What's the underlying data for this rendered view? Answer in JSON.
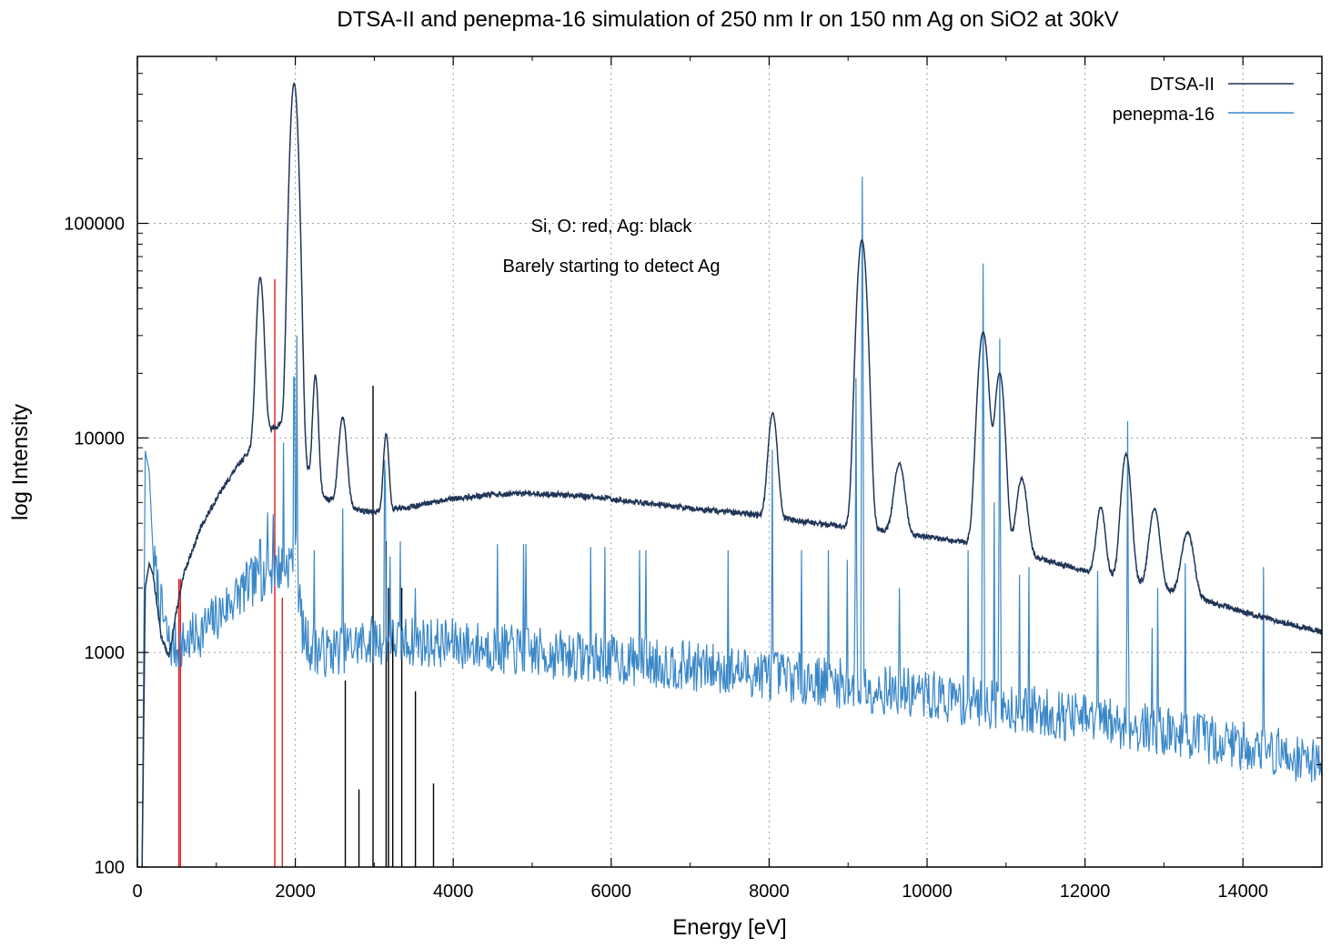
{
  "chart_data": {
    "type": "line",
    "title": "DTSA-II and penepma-16 simulation of 250 nm Ir on 150 nm Ag on SiO2 at 30kV",
    "xlabel": "Energy [eV]",
    "ylabel": "log Intensity",
    "xlim": [
      0,
      15000
    ],
    "ylim": [
      100,
      600000
    ],
    "yscale": "log",
    "x_ticks": [
      0,
      2000,
      4000,
      6000,
      8000,
      10000,
      12000,
      14000
    ],
    "y_ticks": [
      100,
      1000,
      10000,
      100000
    ],
    "grid": true,
    "legend_position": "top-right",
    "annotations": [
      "Si, O: red, Ag: black",
      "Barely starting to detect Ag"
    ],
    "series": [
      {
        "name": "DTSA-II",
        "color": "#1f3557",
        "continuum": [
          [
            60,
            100
          ],
          [
            100,
            2000
          ],
          [
            150,
            2600
          ],
          [
            200,
            2300
          ],
          [
            300,
            1200
          ],
          [
            400,
            950
          ],
          [
            500,
            1600
          ],
          [
            600,
            2400
          ],
          [
            800,
            3800
          ],
          [
            1000,
            5200
          ],
          [
            1200,
            6800
          ],
          [
            1400,
            8600
          ],
          [
            1500,
            9600
          ],
          [
            1600,
            10500
          ],
          [
            1800,
            11500
          ],
          [
            2000,
            9000
          ],
          [
            2200,
            6500
          ],
          [
            2400,
            5200
          ],
          [
            2600,
            4900
          ],
          [
            2800,
            4600
          ],
          [
            3000,
            4500
          ],
          [
            3500,
            4800
          ],
          [
            4000,
            5200
          ],
          [
            4500,
            5450
          ],
          [
            5000,
            5500
          ],
          [
            5500,
            5400
          ],
          [
            6000,
            5200
          ],
          [
            6500,
            4950
          ],
          [
            7000,
            4700
          ],
          [
            7500,
            4500
          ],
          [
            8000,
            4300
          ],
          [
            8500,
            4050
          ],
          [
            9000,
            3850
          ],
          [
            9500,
            3650
          ],
          [
            10000,
            3450
          ],
          [
            10500,
            3250
          ],
          [
            11000,
            3000
          ],
          [
            11500,
            2700
          ],
          [
            12000,
            2400
          ],
          [
            12500,
            2200
          ],
          [
            13000,
            1950
          ],
          [
            13500,
            1750
          ],
          [
            14000,
            1550
          ],
          [
            14500,
            1380
          ],
          [
            15000,
            1250
          ]
        ],
        "peaks": [
          [
            1555,
            46000,
            40
          ],
          [
            1985,
            440000,
            45
          ],
          [
            2255,
            13500,
            30
          ],
          [
            2600,
            7600,
            45
          ],
          [
            3150,
            5900,
            30
          ],
          [
            8045,
            8800,
            50
          ],
          [
            9175,
            80000,
            55
          ],
          [
            9650,
            4000,
            60
          ],
          [
            10710,
            28000,
            60
          ],
          [
            10920,
            17000,
            55
          ],
          [
            11200,
            3600,
            60
          ],
          [
            12200,
            2450,
            50
          ],
          [
            12520,
            6200,
            55
          ],
          [
            12880,
            2650,
            60
          ],
          [
            13300,
            1800,
            70
          ]
        ]
      },
      {
        "name": "penepma-16",
        "color": "#3a87c8",
        "continuum": [
          [
            60,
            100
          ],
          [
            100,
            8700
          ],
          [
            150,
            7000
          ],
          [
            200,
            2800
          ],
          [
            300,
            1600
          ],
          [
            400,
            1100
          ],
          [
            500,
            1050
          ],
          [
            600,
            1100
          ],
          [
            800,
            1250
          ],
          [
            1000,
            1450
          ],
          [
            1200,
            1750
          ],
          [
            1400,
            2050
          ],
          [
            1600,
            2300
          ],
          [
            1800,
            2500
          ],
          [
            2000,
            2700
          ],
          [
            2100,
            1200
          ],
          [
            2200,
            1050
          ],
          [
            2400,
            1000
          ],
          [
            3000,
            1150
          ],
          [
            4000,
            1100
          ],
          [
            5000,
            1000
          ],
          [
            6000,
            930
          ],
          [
            7000,
            860
          ],
          [
            8000,
            790
          ],
          [
            9000,
            710
          ],
          [
            10000,
            630
          ],
          [
            11000,
            560
          ],
          [
            12000,
            490
          ],
          [
            13000,
            430
          ],
          [
            14000,
            370
          ],
          [
            15000,
            310
          ]
        ],
        "lines": [
          [
            1555,
            28000
          ],
          [
            1650,
            4500
          ],
          [
            1720,
            4400
          ],
          [
            1850,
            9500
          ],
          [
            1985,
            160000
          ],
          [
            2020,
            30000
          ],
          [
            2240,
            3000
          ],
          [
            2575,
            2400
          ],
          [
            2600,
            4700
          ],
          [
            3130,
            7900
          ],
          [
            3140,
            6100
          ],
          [
            3200,
            2800
          ],
          [
            3330,
            3300
          ],
          [
            3520,
            2000
          ],
          [
            4560,
            3200
          ],
          [
            4890,
            3200
          ],
          [
            4920,
            3200
          ],
          [
            5740,
            3100
          ],
          [
            5920,
            3100
          ],
          [
            6360,
            3000
          ],
          [
            6440,
            3000
          ],
          [
            7480,
            3000
          ],
          [
            8040,
            8800
          ],
          [
            8410,
            3000
          ],
          [
            8750,
            3000
          ],
          [
            8990,
            2700
          ],
          [
            9100,
            19000
          ],
          [
            9180,
            165000
          ],
          [
            9650,
            2000
          ],
          [
            10520,
            3000
          ],
          [
            10710,
            65000
          ],
          [
            10850,
            5000
          ],
          [
            10920,
            29000
          ],
          [
            11170,
            2300
          ],
          [
            11290,
            2500
          ],
          [
            12160,
            2400
          ],
          [
            12540,
            12000
          ],
          [
            12850,
            1300
          ],
          [
            12920,
            2000
          ],
          [
            13270,
            2600
          ],
          [
            14260,
            2500
          ]
        ]
      }
    ],
    "marker_lines": [
      {
        "group": "Si, O",
        "color": "#e31a1c",
        "lines": [
          [
            525,
            2200
          ],
          [
            545,
            2200
          ],
          [
            1740,
            55000
          ],
          [
            1835,
            1800
          ]
        ]
      },
      {
        "group": "Ag",
        "color": "#000000",
        "lines": [
          [
            2633,
            740
          ],
          [
            2806,
            230
          ],
          [
            2984,
            17500
          ],
          [
            3150,
            3300
          ],
          [
            3180,
            2000
          ],
          [
            3234,
            1300
          ],
          [
            3348,
            2000
          ],
          [
            3521,
            660
          ],
          [
            3750,
            245
          ]
        ]
      }
    ]
  }
}
